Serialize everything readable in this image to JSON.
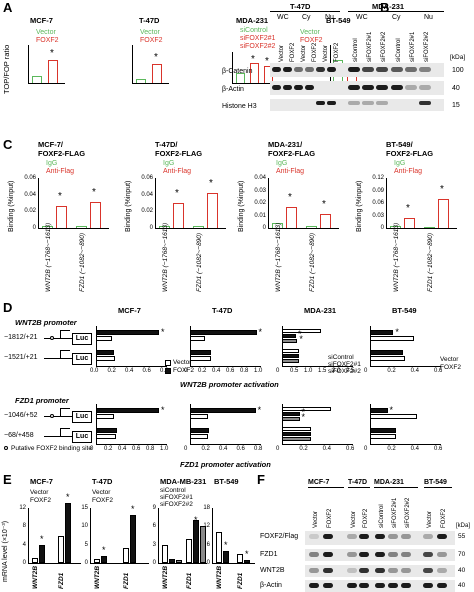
{
  "panels": {
    "A": "A",
    "B": "B",
    "C": "C",
    "D": "D",
    "E": "E",
    "F": "F"
  },
  "A": {
    "ylabel": "TOP/FOP ratio",
    "groups": [
      {
        "title": "MCF-7",
        "legend": [
          "Vector",
          "FOXF2"
        ]
      },
      {
        "title": "T-47D",
        "legend": [
          "Vector",
          "FOXF2"
        ]
      },
      {
        "title": "MDA-231",
        "legend": [
          "siControl",
          "siFOXF2#1",
          "siFOXF2#2"
        ]
      },
      {
        "title": "BT-549",
        "legend": [
          "Vector",
          "FOXF2"
        ]
      }
    ],
    "star": "*"
  },
  "B": {
    "t47d": "T-47D",
    "mda": "MDA-231",
    "fractions": [
      "WC",
      "Cy",
      "Nu"
    ],
    "lanes_left": [
      "Vector",
      "FOXF2",
      "Vector",
      "FOXF2",
      "Vector",
      "FOXF2"
    ],
    "lanes_right": [
      "siControl",
      "siFOXF2#1",
      "siFOXF2#2",
      "siControl",
      "siFOXF2#1",
      "siFOXF2#2"
    ],
    "rows": [
      "β-Catenin",
      "β-Actin",
      "Histone H3"
    ],
    "kda": "[kDa]",
    "markers": [
      "100",
      "40",
      "15"
    ]
  },
  "C": {
    "titles": [
      "MCF-7/\nFOXF2-FLAG",
      "T-47D/\nFOXF2-FLAG",
      "MDA-231/\nFOXF2-FLAG",
      "BT-549/\nFOXF2-FLAG"
    ],
    "legend": [
      "IgG",
      "Anti-Flag"
    ],
    "ylabel": "Binding (%input)",
    "xlabels": [
      "WNT2B (−1768~−1613)",
      "FZD1 (−1082~−890)"
    ],
    "yticks": [
      [
        "0",
        "0.02",
        "0.04",
        "0.06"
      ],
      [
        "0",
        "0.02",
        "0.04",
        "0.06"
      ],
      [
        "0",
        "0.01",
        "0.02",
        "0.03",
        "0.04"
      ],
      [
        "0",
        "0.03",
        "0.06",
        "0.09",
        "0.12"
      ]
    ]
  },
  "D": {
    "titles": [
      "MCF-7",
      "T-47D",
      "MDA-231",
      "BT-549"
    ],
    "wnt_promoter": "WNT2B promoter",
    "fzd_promoter": "FZD1 promoter",
    "wnt_constructs": [
      "−1812/+21",
      "−1521/+21"
    ],
    "fzd_constructs": [
      "−1046/+52",
      "−68/+458"
    ],
    "luc": "Luc",
    "legend_ov": [
      "Vector",
      "FOXF2"
    ],
    "legend_si": [
      "siControl",
      "siFOXF2#1",
      "siFOXF2#2"
    ],
    "xticks_wnt": [
      [
        "0.0",
        "0.2",
        "0.4",
        "0.6",
        "0.8"
      ],
      [
        "0",
        "0.2",
        "0.4",
        "0.6",
        "0.8",
        "1.0"
      ],
      [
        "0",
        "0.5",
        "1.0",
        "1.5",
        "2.0",
        "2.5"
      ],
      [
        "0",
        "0.2",
        "0.4",
        "0.6"
      ]
    ],
    "xticks_fzd": [
      [
        "0",
        "0.2",
        "0.4",
        "0.6",
        "0.8",
        "1.0"
      ],
      [
        "0",
        "0.2",
        "0.4",
        "0.6",
        "0.8"
      ],
      [
        "0",
        "0.2",
        "0.4",
        "0.6"
      ],
      [
        "0",
        "0.2",
        "0.4",
        "0.6"
      ]
    ],
    "wnt_axis": "WNT2B promoter activation",
    "fzd_axis": "FZD1 promoter activation",
    "binding_site": "Putative FOXF2 binding site"
  },
  "E": {
    "titles": [
      "MCF-7",
      "T-47D",
      "MDA-MB-231",
      "BT-549"
    ],
    "ylabel": "mRNA level (×10⁻³)",
    "legend_ov": [
      "Vector",
      "FOXF2"
    ],
    "legend_si": [
      "siControl",
      "siFOXF2#1",
      "siFOXF2#2"
    ],
    "xlabels": [
      "WNT2B",
      "FZD1"
    ],
    "yticks": [
      [
        "0",
        "4",
        "8",
        "12"
      ],
      [
        "0",
        "5",
        "10",
        "15"
      ],
      [
        "0",
        "3",
        "6",
        "9"
      ],
      [
        "0",
        "6",
        "12",
        "18"
      ]
    ]
  },
  "F": {
    "cells": [
      "MCF-7",
      "T-47D",
      "MDA-231",
      "BT-549"
    ],
    "lanes": [
      "Vector",
      "FOXF2",
      "Vector",
      "FOXF2",
      "siControl",
      "siFOXF2#1",
      "siFOXF2#2",
      "Vector",
      "FOXF2"
    ],
    "rows": [
      "FOXF2/Flag",
      "FZD1",
      "WNT2B",
      "β-Actin"
    ],
    "kda": "[kDa]",
    "markers": [
      "55",
      "70",
      "40",
      "40"
    ]
  },
  "colors": {
    "green": "#5cb85c",
    "red": "#d9342b",
    "black": "#111111",
    "gray": "#8a8a8a"
  }
}
